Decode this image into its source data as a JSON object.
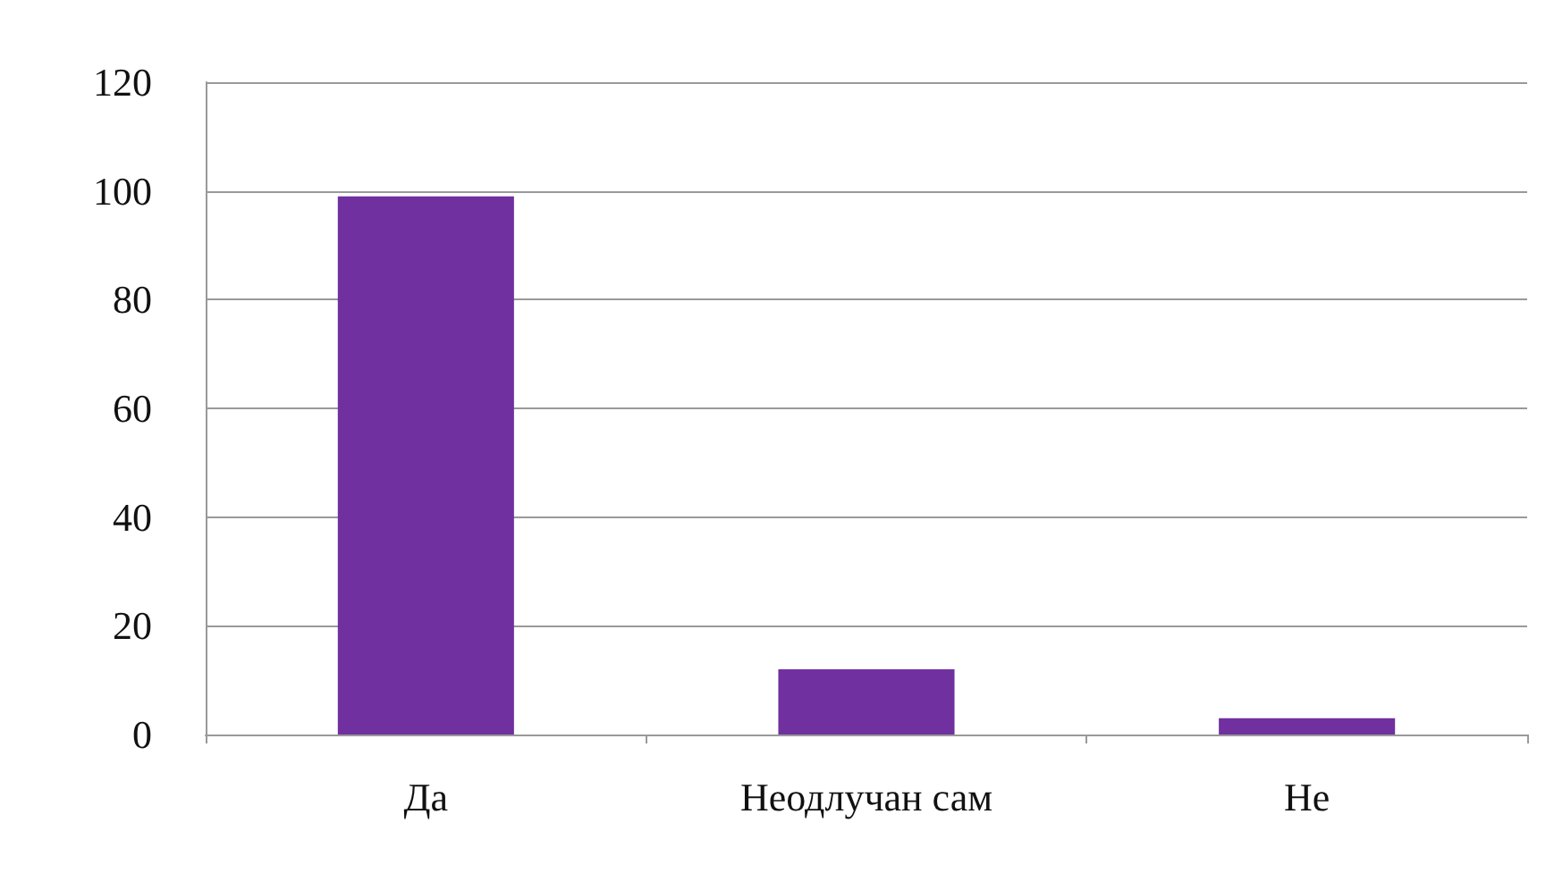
{
  "chart_data": {
    "type": "bar",
    "categories": [
      "Да",
      "Неодлучан сам",
      "Не"
    ],
    "values": [
      99,
      12,
      3
    ],
    "color": "#7030a0",
    "ylim": [
      0,
      120
    ],
    "yticks": [
      0,
      20,
      40,
      60,
      80,
      100,
      120
    ],
    "grid": "y"
  }
}
